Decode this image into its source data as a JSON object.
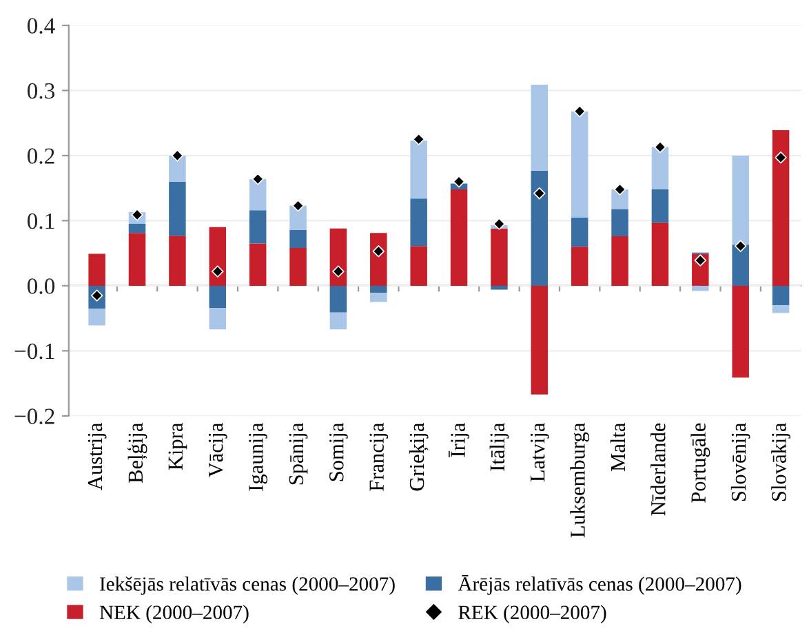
{
  "chart_data": {
    "type": "bar",
    "stacked": true,
    "categories": [
      "Austrija",
      "Beļģija",
      "Kipra",
      "Vācija",
      "Igaunija",
      "Spānija",
      "Somija",
      "Francija",
      "Grieķija",
      "Īrija",
      "Itālija",
      "Latvija",
      "Luksemburga",
      "Malta",
      "Nīderlande",
      "Portugāle",
      "Slovēnija",
      "Slovākija"
    ],
    "series": [
      {
        "name": "NEK (2000–2007)",
        "color": "#c8202a",
        "values": [
          0.049,
          0.081,
          0.077,
          0.09,
          0.065,
          0.058,
          0.088,
          0.081,
          0.061,
          0.148,
          0.088,
          -0.167,
          0.06,
          0.076,
          0.097,
          0.049,
          -0.141,
          0.239
        ]
      },
      {
        "name": "Ārējās relatīvās cenas (2000–2007)",
        "color": "#3a6fa3",
        "values": [
          -0.035,
          0.014,
          0.083,
          -0.034,
          0.051,
          0.028,
          -0.041,
          -0.011,
          0.073,
          0.009,
          -0.006,
          0.177,
          0.045,
          0.042,
          0.051,
          0.002,
          0.063,
          -0.03
        ]
      },
      {
        "name": "Iekšējās relatīvās cenas (2000–2007)",
        "color": "#a9c6e8",
        "values": [
          -0.026,
          0.018,
          0.04,
          -0.033,
          0.048,
          0.037,
          -0.026,
          -0.014,
          0.089,
          null,
          0.005,
          0.132,
          0.163,
          0.03,
          0.065,
          -0.008,
          0.137,
          -0.012
        ]
      },
      {
        "name": "REK (2000–2007)",
        "type": "scatter",
        "marker": "diamond",
        "color": "#000000",
        "values": [
          -0.015,
          0.109,
          0.2,
          0.022,
          0.164,
          0.123,
          0.022,
          0.053,
          0.225,
          0.16,
          0.095,
          0.142,
          0.268,
          0.148,
          0.213,
          0.039,
          0.061,
          0.197
        ]
      }
    ],
    "ylim": [
      -0.2,
      0.4
    ],
    "yticks": [
      {
        "value": -0.2,
        "label": "−0.2"
      },
      {
        "value": -0.1,
        "label": "−0.1"
      },
      {
        "value": 0,
        "label": "0.0"
      },
      {
        "value": 0.1,
        "label": "0.1"
      },
      {
        "value": 0.2,
        "label": "0.2"
      },
      {
        "value": 0.3,
        "label": "0.3"
      },
      {
        "value": 0.4,
        "label": "0.4"
      }
    ],
    "grid": "y",
    "legend": "bottom"
  }
}
